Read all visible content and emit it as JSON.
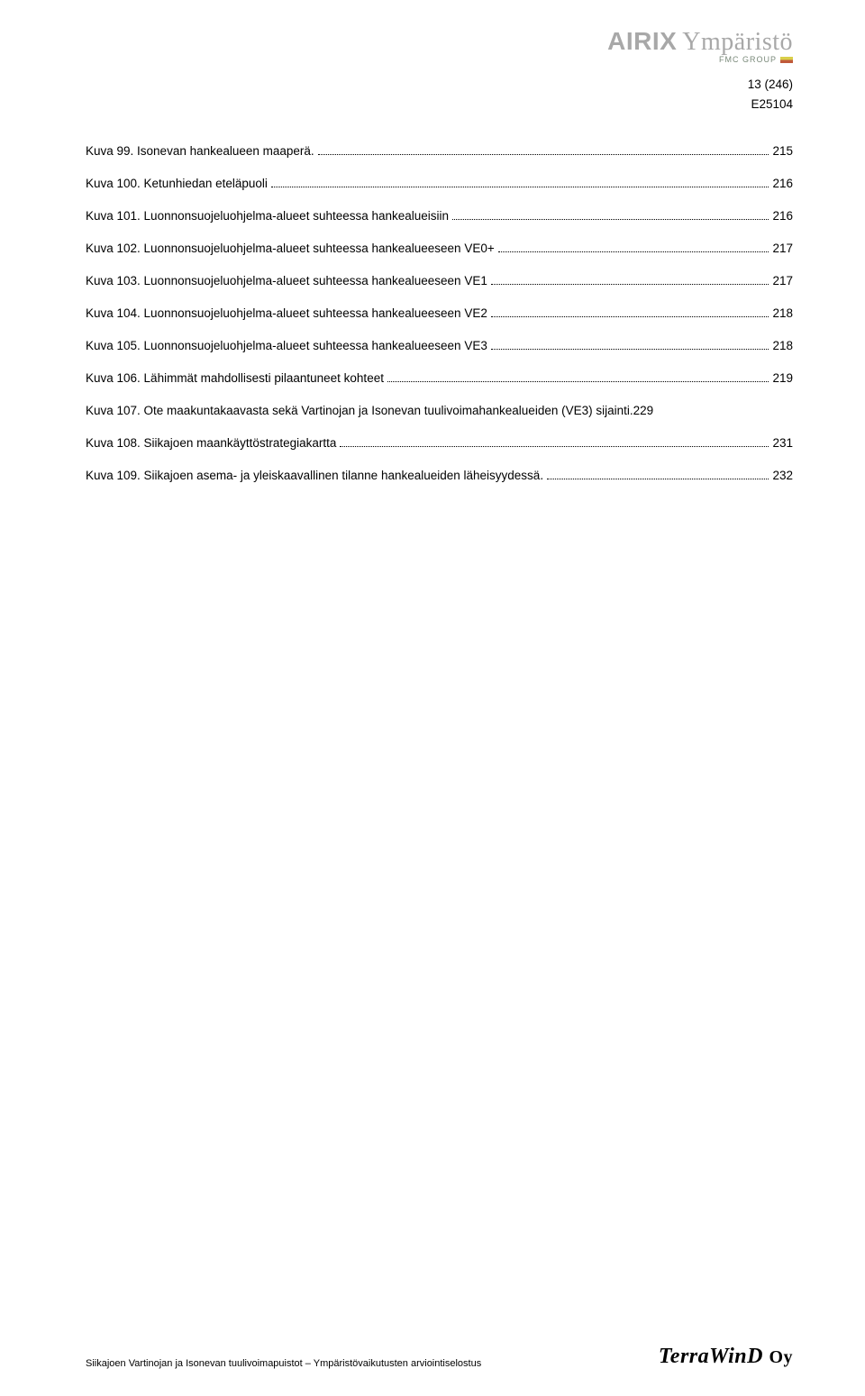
{
  "header": {
    "logo_brand": "AIRIX",
    "logo_word": "Ympäristö",
    "logo_sub": "FMC GROUP",
    "page_indicator": "13 (246)",
    "doc_id": "E25104"
  },
  "toc": [
    {
      "label": "Kuva 99. Isonevan hankealueen maaperä.",
      "page": "215"
    },
    {
      "label": "Kuva 100. Ketunhiedan eteläpuoli",
      "page": "216"
    },
    {
      "label": "Kuva 101. Luonnonsuojeluohjelma-alueet suhteessa hankealueisiin",
      "page": "216"
    },
    {
      "label": "Kuva 102. Luonnonsuojeluohjelma-alueet suhteessa hankealueeseen VE0+",
      "page": "217"
    },
    {
      "label": "Kuva 103. Luonnonsuojeluohjelma-alueet suhteessa hankealueeseen VE1",
      "page": "217"
    },
    {
      "label": "Kuva 104. Luonnonsuojeluohjelma-alueet suhteessa hankealueeseen VE2",
      "page": "218"
    },
    {
      "label": "Kuva 105. Luonnonsuojeluohjelma-alueet suhteessa hankealueeseen VE3",
      "page": "218"
    },
    {
      "label": "Kuva 106. Lähimmät mahdollisesti pilaantuneet kohteet",
      "page": "219"
    },
    {
      "label": "Kuva 107. Ote maakuntakaavasta sekä Vartinojan ja Isonevan tuulivoimahankealueiden (VE3) sijainti.",
      "page": "229"
    },
    {
      "label": "Kuva 108. Siikajoen maankäyttöstrategiakartta",
      "page": "231"
    },
    {
      "label": "Kuva 109. Siikajoen asema- ja yleiskaavallinen tilanne hankealueiden läheisyydessä.",
      "page": "232"
    }
  ],
  "footer": {
    "left": "Siikajoen Vartinojan ja Isonevan tuulivoimapuistot – Ympäristövaikutusten arviointiselostus",
    "right_brand": "TerraWinD",
    "right_suffix": "Oy"
  }
}
